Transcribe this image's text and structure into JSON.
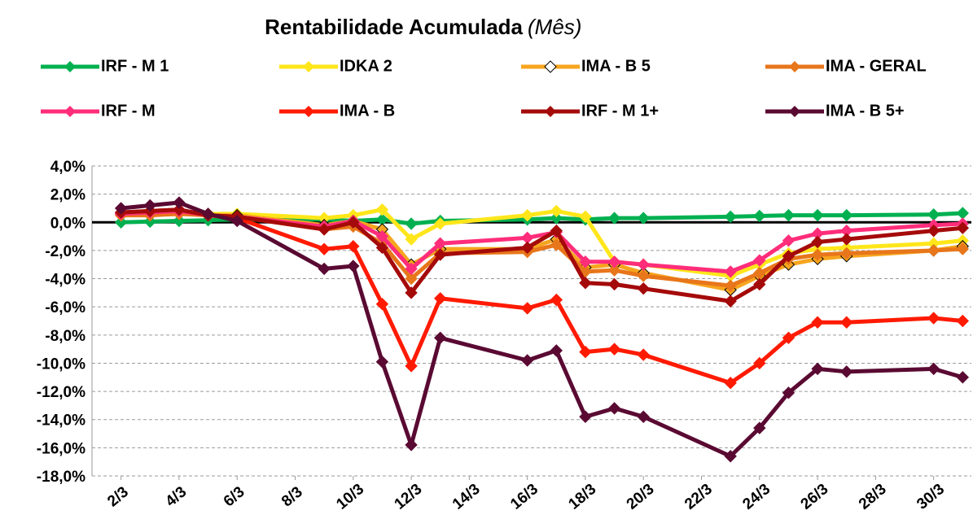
{
  "chart_data": {
    "type": "line",
    "title": "Rentabilidade Acumulada",
    "subtitle": "(Mês)",
    "x": [
      2,
      3,
      4,
      5,
      6,
      9,
      10,
      11,
      12,
      13,
      16,
      17,
      18,
      19,
      20,
      23,
      24,
      25,
      26,
      27,
      30,
      31
    ],
    "xlim": [
      1,
      31.3
    ],
    "xticks": [
      {
        "value": 2,
        "label": "2/3"
      },
      {
        "value": 4,
        "label": "4/3"
      },
      {
        "value": 6,
        "label": "6/3"
      },
      {
        "value": 8,
        "label": "8/3"
      },
      {
        "value": 10,
        "label": "10/3"
      },
      {
        "value": 12,
        "label": "12/3"
      },
      {
        "value": 14,
        "label": "14/3"
      },
      {
        "value": 16,
        "label": "16/3"
      },
      {
        "value": 18,
        "label": "18/3"
      },
      {
        "value": 20,
        "label": "20/3"
      },
      {
        "value": 22,
        "label": "22/3"
      },
      {
        "value": 24,
        "label": "24/3"
      },
      {
        "value": 26,
        "label": "26/3"
      },
      {
        "value": 28,
        "label": "28/3"
      },
      {
        "value": 30,
        "label": "30/3"
      }
    ],
    "ylim": [
      -18,
      4
    ],
    "yticks": [
      {
        "value": 4,
        "label": "4,0%"
      },
      {
        "value": 2,
        "label": "2,0%"
      },
      {
        "value": 0,
        "label": "0,0%"
      },
      {
        "value": -2,
        "label": "-2,0%"
      },
      {
        "value": -4,
        "label": "-4,0%"
      },
      {
        "value": -6,
        "label": "-6,0%"
      },
      {
        "value": -8,
        "label": "-8,0%"
      },
      {
        "value": -10,
        "label": "-10,0%"
      },
      {
        "value": -12,
        "label": "-12,0%"
      },
      {
        "value": -14,
        "label": "-14,0%"
      },
      {
        "value": -16,
        "label": "-16,0%"
      },
      {
        "value": -18,
        "label": "-18,0%"
      }
    ],
    "grid": true,
    "legend": "top",
    "series": [
      {
        "name": "IRF - M 1",
        "color": "#00b050",
        "marker": "diamond",
        "values": [
          0,
          0.05,
          0.1,
          0.15,
          0.2,
          0.2,
          0.1,
          0.2,
          -0.1,
          0.1,
          0.2,
          0.3,
          0.2,
          0.3,
          0.3,
          0.4,
          0.45,
          0.5,
          0.5,
          0.5,
          0.55,
          0.65
        ]
      },
      {
        "name": "IDKA 2",
        "color": "#ffe61a",
        "marker": "diamond",
        "values": [
          0.5,
          0.6,
          0.7,
          0.6,
          0.6,
          0.3,
          0.5,
          0.9,
          -1.2,
          -0.1,
          0.5,
          0.8,
          0.4,
          -2.8,
          -3.0,
          -3.8,
          -3.0,
          -2.2,
          -1.9,
          -1.8,
          -1.5,
          -1.3
        ]
      },
      {
        "name": "IMA - B 5",
        "color": "#f7a51e",
        "marker": "hollow-diamond",
        "values": [
          0.6,
          0.6,
          0.7,
          0.5,
          0.5,
          -0.2,
          0.1,
          -0.5,
          -3.0,
          -1.9,
          -1.9,
          -1.2,
          -3.2,
          -3.0,
          -3.6,
          -4.8,
          -3.8,
          -3.0,
          -2.6,
          -2.4,
          -2.0,
          -1.7
        ]
      },
      {
        "name": "IMA - GERAL",
        "color": "#e8761a",
        "marker": "diamond",
        "values": [
          0.5,
          0.5,
          0.6,
          0.5,
          0.4,
          -0.5,
          -0.3,
          -1.5,
          -4.0,
          -2.2,
          -2.1,
          -1.6,
          -3.5,
          -3.4,
          -3.8,
          -4.5,
          -3.6,
          -2.6,
          -2.3,
          -2.2,
          -2.0,
          -1.9
        ]
      },
      {
        "name": "IRF - M",
        "color": "#ff2d7a",
        "marker": "diamond",
        "values": [
          0.6,
          0.7,
          0.8,
          0.5,
          0.4,
          -0.3,
          0.1,
          -1.0,
          -3.3,
          -1.5,
          -1.1,
          -0.7,
          -2.8,
          -2.8,
          -3.0,
          -3.5,
          -2.7,
          -1.3,
          -0.8,
          -0.6,
          -0.2,
          -0.1
        ]
      },
      {
        "name": "IMA - B",
        "color": "#ff1a00",
        "marker": "diamond",
        "values": [
          0.7,
          0.8,
          0.9,
          0.5,
          0.3,
          -1.9,
          -1.7,
          -5.8,
          -10.2,
          -5.4,
          -6.1,
          -5.5,
          -9.2,
          -9.0,
          -9.4,
          -11.4,
          -10.0,
          -8.2,
          -7.1,
          -7.1,
          -6.8,
          -7.0
        ]
      },
      {
        "name": "IRF - M 1+",
        "color": "#a50a0a",
        "marker": "diamond",
        "values": [
          0.7,
          0.8,
          0.9,
          0.5,
          0.4,
          -0.5,
          0.0,
          -1.8,
          -5.0,
          -2.3,
          -1.8,
          -0.6,
          -4.3,
          -4.4,
          -4.7,
          -5.6,
          -4.4,
          -2.4,
          -1.4,
          -1.2,
          -0.6,
          -0.4
        ]
      },
      {
        "name": "IMA - B 5+",
        "color": "#5a0a32",
        "marker": "diamond",
        "values": [
          1.0,
          1.2,
          1.4,
          0.6,
          0.1,
          -3.3,
          -3.1,
          -9.9,
          -15.8,
          -8.2,
          -9.8,
          -9.1,
          -13.8,
          -13.2,
          -13.8,
          -16.6,
          -14.6,
          -12.1,
          -10.4,
          -10.6,
          -10.4,
          -11.0
        ]
      }
    ]
  }
}
